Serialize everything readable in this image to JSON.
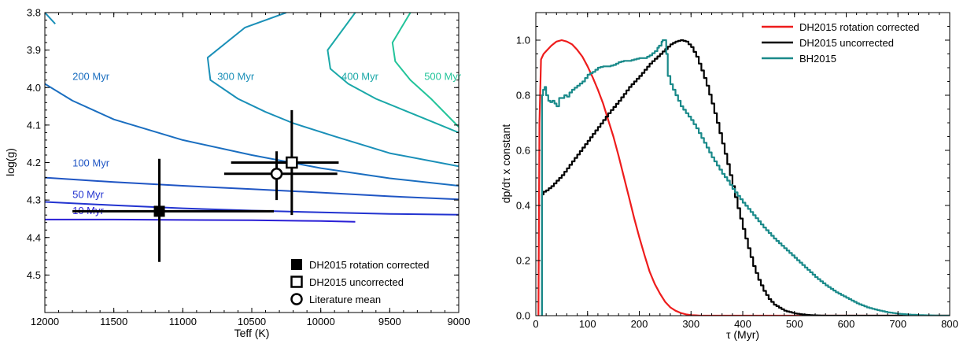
{
  "chart_data": [
    {
      "type": "line",
      "title": "",
      "xlabel": "Teff (K)",
      "ylabel": "log(g)",
      "xlim": [
        12000,
        9000
      ],
      "ylim": [
        3.8,
        4.6
      ],
      "x_inverted": true,
      "y_inverted": true,
      "x_ticks": [
        12000,
        11500,
        11000,
        10500,
        10000,
        9500,
        9000
      ],
      "x_tick_labels": [
        "12000",
        "11500",
        "11000",
        "10500",
        "10000",
        "9500",
        "9000"
      ],
      "y_ticks": [
        3.8,
        3.9,
        4.0,
        4.1,
        4.2,
        4.3,
        4.4,
        4.5
      ],
      "y_tick_labels": [
        "3.8",
        "3.9",
        "4.0",
        "4.1",
        "4.2",
        "4.3",
        "4.4",
        "4.5"
      ],
      "grid": false,
      "isochrones": [
        {
          "name": "10 Myr",
          "color": "#2a1fd6",
          "x": [
            12000,
            11500,
            11000,
            10500,
            10000,
            9750
          ],
          "y": [
            4.352,
            4.352,
            4.353,
            4.354,
            4.356,
            4.358
          ]
        },
        {
          "name": "50 Myr",
          "color": "#2233d0",
          "x": [
            12000,
            11500,
            11000,
            10500,
            10000,
            9500,
            9000
          ],
          "y": [
            4.305,
            4.314,
            4.322,
            4.328,
            4.333,
            4.337,
            4.339
          ]
        },
        {
          "name": "100 Myr",
          "color": "#1f55c4",
          "x": [
            12000,
            11500,
            11000,
            10500,
            10000,
            9500,
            9000
          ],
          "y": [
            4.24,
            4.252,
            4.262,
            4.271,
            4.28,
            4.29,
            4.298
          ]
        },
        {
          "name": "200 Myr",
          "color": "#1a6ec0",
          "x": [
            12000,
            11800,
            11500,
            11000,
            10500,
            10000,
            9500,
            9000
          ],
          "y": [
            3.99,
            4.035,
            4.085,
            4.14,
            4.18,
            4.215,
            4.242,
            4.262
          ]
        },
        {
          "name": "300 Myr",
          "color": "#1a8fb8",
          "x": [
            11925,
            12000
          ],
          "y": [
            3.83,
            3.8
          ]
        },
        {
          "name": "300 Myr",
          "color": "#1a8fb8",
          "x": [
            10250,
            10550,
            10820,
            10800,
            10600,
            10400,
            10200,
            9900,
            9500,
            9000
          ],
          "y": [
            3.8,
            3.84,
            3.92,
            3.98,
            4.03,
            4.065,
            4.095,
            4.13,
            4.175,
            4.21
          ]
        },
        {
          "name": "400 Myr",
          "color": "#1aa8a8",
          "x": [
            9750,
            9950,
            9930,
            9800,
            9600,
            9400,
            9200,
            9000
          ],
          "y": [
            3.8,
            3.9,
            3.95,
            3.99,
            4.03,
            4.06,
            4.09,
            4.12
          ]
        },
        {
          "name": "500 Myr",
          "color": "#22c49a",
          "x": [
            9350,
            9480,
            9460,
            9350,
            9200,
            9080,
            9000
          ],
          "y": [
            3.8,
            3.88,
            3.93,
            3.98,
            4.03,
            4.075,
            4.105
          ]
        }
      ],
      "isochrone_labels": [
        {
          "text": "200 Myr",
          "x": 11800,
          "y": 3.98,
          "color": "#1a6ec0"
        },
        {
          "text": "300 Myr",
          "x": 10750,
          "y": 3.98,
          "color": "#1a8fb8"
        },
        {
          "text": "400 Myr",
          "x": 9850,
          "y": 3.98,
          "color": "#1aa8a8"
        },
        {
          "text": "500 Myr",
          "x": 9250,
          "y": 3.98,
          "color": "#22c49a"
        },
        {
          "text": "100 Myr",
          "x": 11800,
          "y": 4.21,
          "color": "#1f55c4"
        },
        {
          "text": "50 Myr",
          "x": 11800,
          "y": 4.295,
          "color": "#2233d0"
        },
        {
          "text": "10 Myr",
          "x": 11800,
          "y": 4.338,
          "color": "#2a1fd6"
        }
      ],
      "points": [
        {
          "name": "DH2015 rotation corrected",
          "marker": "filled-square",
          "x": 11170,
          "y": 4.33,
          "x_err": [
            11800,
            10340
          ],
          "y_err": [
            4.19,
            4.465
          ]
        },
        {
          "name": "DH2015 uncorrected",
          "marker": "open-square",
          "x": 10210,
          "y": 4.2,
          "x_err": [
            10650,
            9870
          ],
          "y_err": [
            4.06,
            4.34
          ]
        },
        {
          "name": "Literature mean",
          "marker": "open-circle",
          "x": 10320,
          "y": 4.23,
          "x_err": [
            10700,
            9880
          ],
          "y_err": [
            4.17,
            4.3
          ]
        }
      ],
      "legend_position": "bottom-right"
    },
    {
      "type": "line",
      "title": "",
      "xlabel": "τ (Myr)",
      "ylabel": "dp/dτ x constant",
      "xlim": [
        0,
        800
      ],
      "ylim": [
        0,
        1.1
      ],
      "x_ticks": [
        0,
        100,
        200,
        300,
        400,
        500,
        600,
        700,
        800
      ],
      "x_tick_labels": [
        "0",
        "100",
        "200",
        "300",
        "400",
        "500",
        "600",
        "700",
        "800"
      ],
      "y_ticks": [
        0,
        0.2,
        0.4,
        0.6,
        0.8,
        1.0
      ],
      "y_tick_labels": [
        "0.0",
        "0.2",
        "0.4",
        "0.6",
        "0.8",
        "1.0"
      ],
      "grid": false,
      "series": [
        {
          "name": "DH2015 rotation corrected",
          "color": "#ee1c1c",
          "step": false,
          "x": [
            5,
            7,
            10,
            15,
            20,
            30,
            40,
            50,
            60,
            70,
            80,
            90,
            100,
            110,
            120,
            130,
            140,
            150,
            160,
            170,
            180,
            190,
            200,
            210,
            220,
            230,
            240,
            250,
            260,
            270,
            280,
            290,
            300,
            310,
            320,
            340,
            360,
            400,
            500,
            800
          ],
          "values": [
            0.0,
            0.7,
            0.93,
            0.95,
            0.96,
            0.98,
            0.995,
            1.0,
            0.995,
            0.985,
            0.965,
            0.94,
            0.905,
            0.865,
            0.82,
            0.77,
            0.71,
            0.65,
            0.58,
            0.505,
            0.43,
            0.355,
            0.285,
            0.22,
            0.16,
            0.115,
            0.08,
            0.05,
            0.03,
            0.018,
            0.01,
            0.005,
            0.002,
            0.001,
            0.0,
            0.0,
            0.0,
            0.0,
            0.0,
            0.0
          ]
        },
        {
          "name": "DH2015 uncorrected",
          "color": "#000000",
          "step": true,
          "x": [
            10,
            12,
            15,
            20,
            30,
            40,
            50,
            60,
            80,
            100,
            120,
            140,
            160,
            180,
            200,
            220,
            240,
            260,
            270,
            280,
            290,
            300,
            310,
            320,
            330,
            340,
            350,
            360,
            370,
            380,
            390,
            400,
            410,
            420,
            430,
            440,
            450,
            460,
            480,
            500,
            520,
            540,
            560,
            600,
            800
          ],
          "values": [
            0.0,
            0.44,
            0.45,
            0.455,
            0.47,
            0.49,
            0.51,
            0.535,
            0.585,
            0.635,
            0.685,
            0.735,
            0.78,
            0.83,
            0.87,
            0.915,
            0.95,
            0.985,
            0.995,
            1.0,
            0.995,
            0.975,
            0.94,
            0.89,
            0.835,
            0.77,
            0.7,
            0.625,
            0.55,
            0.47,
            0.39,
            0.315,
            0.245,
            0.18,
            0.13,
            0.09,
            0.06,
            0.04,
            0.018,
            0.008,
            0.003,
            0.001,
            0.0,
            0.0,
            0.0
          ]
        },
        {
          "name": "BH2015",
          "color": "#1a8a8a",
          "step": true,
          "x": [
            10,
            12,
            14,
            17,
            20,
            24,
            28,
            32,
            36,
            40,
            45,
            50,
            55,
            60,
            65,
            70,
            80,
            90,
            100,
            110,
            120,
            130,
            140,
            150,
            160,
            170,
            180,
            190,
            200,
            210,
            220,
            230,
            238,
            245,
            250,
            252,
            255,
            260,
            270,
            280,
            290,
            300,
            310,
            320,
            330,
            340,
            350,
            360,
            370,
            380,
            390,
            400,
            420,
            440,
            460,
            480,
            500,
            520,
            540,
            560,
            580,
            600,
            620,
            640,
            660,
            680,
            700,
            720,
            740,
            760,
            780,
            800
          ],
          "values": [
            0.0,
            0.8,
            0.82,
            0.83,
            0.8,
            0.78,
            0.775,
            0.78,
            0.77,
            0.76,
            0.79,
            0.79,
            0.8,
            0.795,
            0.81,
            0.82,
            0.835,
            0.85,
            0.875,
            0.885,
            0.9,
            0.905,
            0.905,
            0.91,
            0.92,
            0.925,
            0.925,
            0.93,
            0.935,
            0.935,
            0.945,
            0.96,
            0.98,
            1.0,
            1.0,
            0.95,
            0.87,
            0.84,
            0.8,
            0.76,
            0.735,
            0.71,
            0.68,
            0.645,
            0.61,
            0.575,
            0.545,
            0.515,
            0.49,
            0.46,
            0.435,
            0.41,
            0.365,
            0.32,
            0.28,
            0.245,
            0.21,
            0.175,
            0.14,
            0.11,
            0.085,
            0.065,
            0.045,
            0.03,
            0.02,
            0.012,
            0.007,
            0.004,
            0.002,
            0.001,
            0.0,
            0.0
          ]
        }
      ],
      "legend_position": "top-right"
    }
  ]
}
